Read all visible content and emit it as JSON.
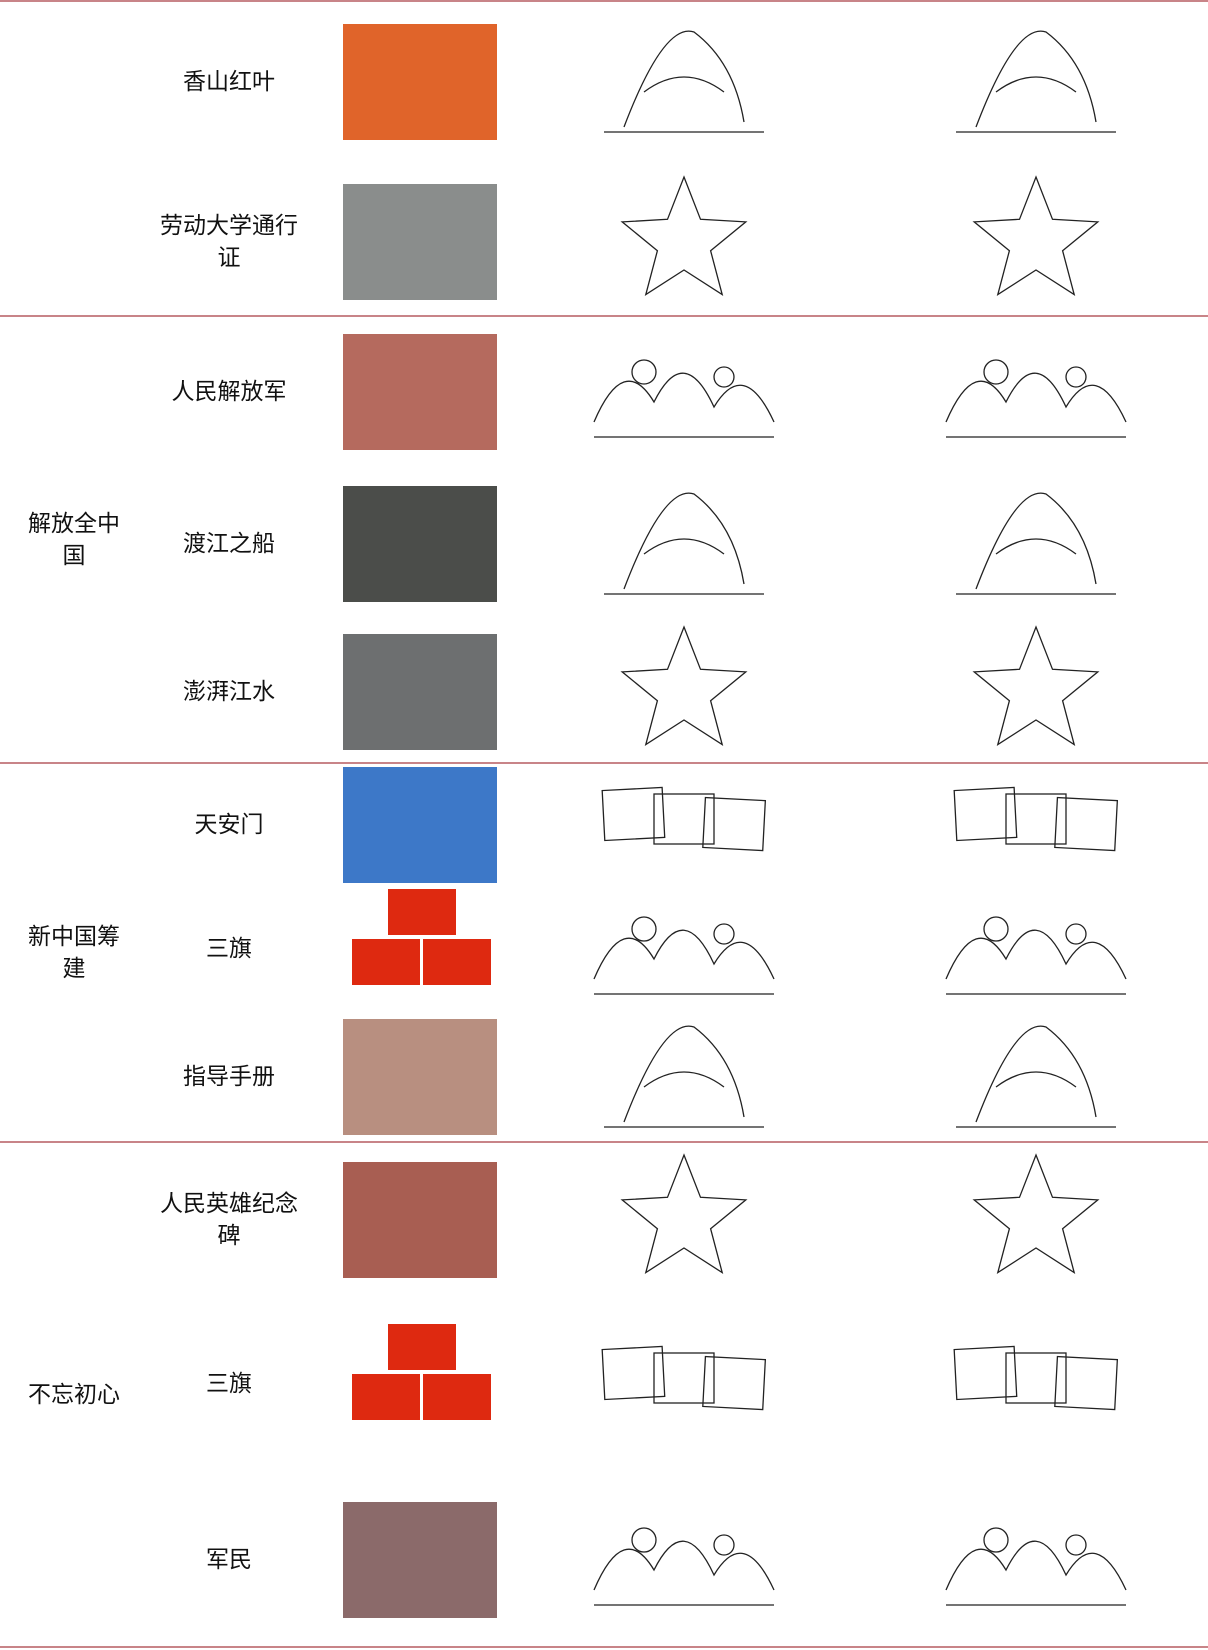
{
  "sections": [
    {
      "rows": [
        {
          "item": "香山红叶"
        },
        {
          "item": "劳动大学通行证"
        }
      ]
    },
    {
      "label": "解放全中国",
      "rows": [
        {
          "item": "人民解放军"
        },
        {
          "item": "渡江之船"
        },
        {
          "item": "澎湃江水"
        }
      ]
    },
    {
      "label": "新中国筹建",
      "rows": [
        {
          "item": "天安门"
        },
        {
          "item": "三旗"
        },
        {
          "item": "指导手册"
        }
      ]
    },
    {
      "label": "不忘初心",
      "rows": [
        {
          "item": "人民英雄纪念碑"
        },
        {
          "item": "三旗"
        },
        {
          "item": "军民"
        }
      ]
    }
  ]
}
